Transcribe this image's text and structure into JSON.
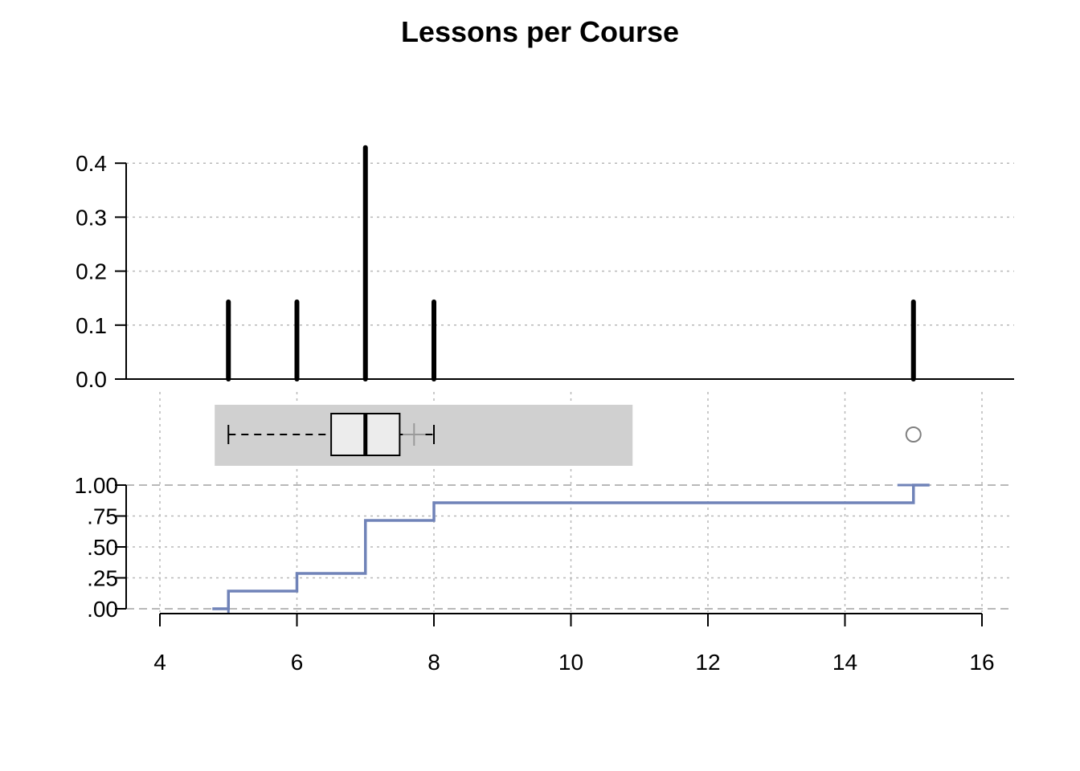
{
  "title": "Lessons per Course",
  "chart_data": [
    {
      "type": "bar",
      "description_kind": "relative frequency spikes",
      "categories": [
        5,
        6,
        7,
        8,
        15
      ],
      "values": [
        0.143,
        0.143,
        0.429,
        0.143,
        0.143
      ],
      "ylim": [
        0,
        0.43
      ],
      "yticks": [
        0.0,
        0.1,
        0.2,
        0.3,
        0.4
      ],
      "ytick_labels": [
        "0.0",
        "0.1",
        "0.2",
        "0.3",
        "0.4"
      ],
      "grid": true,
      "xlabel": "",
      "ylabel": ""
    },
    {
      "type": "boxplot",
      "whisker_low": 5,
      "q1": 6.5,
      "median": 7,
      "q3": 7.5,
      "whisker_high": 8,
      "mean": 7.71,
      "outliers": [
        15
      ],
      "band_range": [
        4.8,
        10.9
      ]
    },
    {
      "type": "line",
      "step": true,
      "x": [
        5,
        6,
        7,
        8,
        15
      ],
      "y": [
        0.143,
        0.286,
        0.714,
        0.857,
        1.0
      ],
      "yticks": [
        0.0,
        0.25,
        0.5,
        0.75,
        1.0
      ],
      "ytick_labels": [
        ".00",
        ".25",
        ".50",
        ".75",
        "1.00"
      ],
      "xticks": [
        4,
        6,
        8,
        10,
        12,
        14,
        16
      ],
      "xtick_labels": [
        "4",
        "6",
        "8",
        "10",
        "12",
        "14",
        "16"
      ],
      "xlim": [
        4,
        16
      ],
      "grid": true
    }
  ],
  "colors": {
    "spike": "#000000",
    "ecdf": "#7083b8",
    "band": "#d0d0d0",
    "box_fill": "#ececec",
    "outlier": "#808080",
    "mean_marker": "#9a9a9a",
    "grid": "#b8b8b8"
  }
}
